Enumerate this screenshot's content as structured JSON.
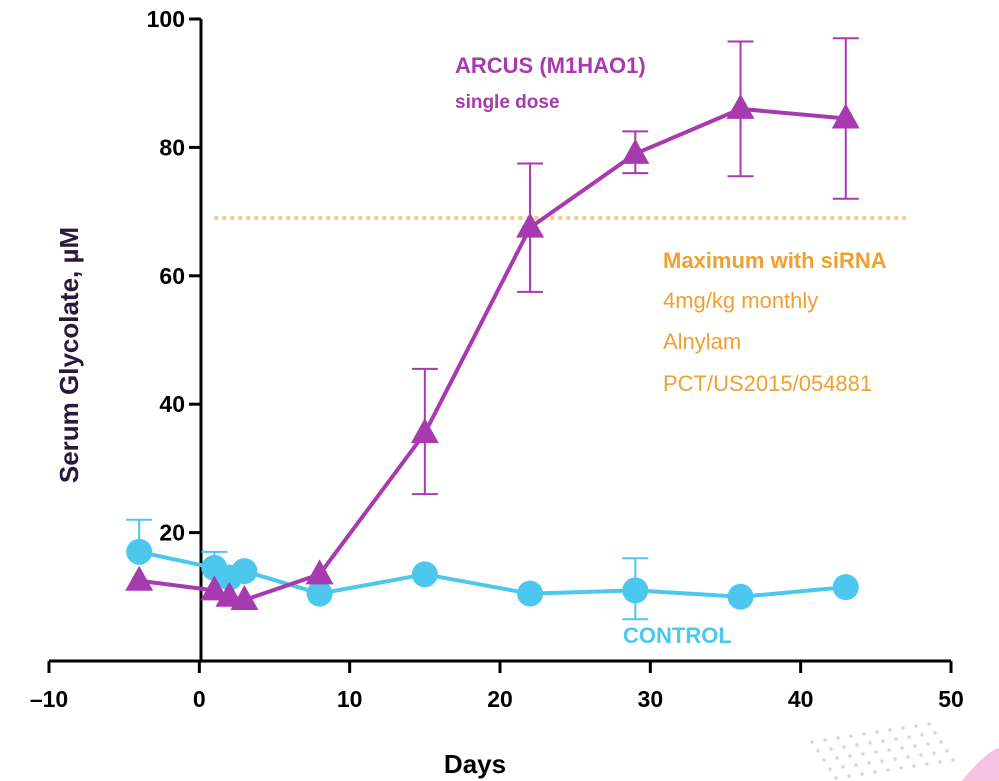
{
  "chart_data": {
    "type": "line",
    "xlabel": "Days",
    "ylabel": "Serum Glycolate, µM",
    "xlim": [
      -10,
      50
    ],
    "ylim": [
      0,
      100
    ],
    "xticks": [
      -10,
      0,
      10,
      20,
      30,
      40,
      50
    ],
    "xtick_labels": [
      "–10",
      "0",
      "10",
      "20",
      "30",
      "40",
      "50"
    ],
    "yticks": [
      20,
      40,
      60,
      80,
      100
    ],
    "ytick_labels": [
      "20",
      "40",
      "60",
      "80",
      "100"
    ],
    "grid": false,
    "colors": {
      "arcus": "#a83ab0",
      "control": "#4cc8ee",
      "sirna": "#f0a030",
      "axis": "#000000",
      "ylabel": "#2a1a3a"
    },
    "series": [
      {
        "name": "ARCUS (M1HAO1)",
        "marker": "triangle",
        "x": [
          -4,
          1,
          2,
          3,
          8,
          15,
          22,
          29,
          36,
          43
        ],
        "y": [
          12.5,
          11,
          10,
          9.5,
          13.5,
          35.5,
          67.5,
          79,
          86,
          84.5
        ],
        "err_low": [
          null,
          null,
          null,
          null,
          null,
          26,
          57.5,
          76,
          75.5,
          72
        ],
        "err_high": [
          null,
          null,
          null,
          null,
          null,
          45.5,
          77.5,
          82.5,
          96.5,
          97
        ]
      },
      {
        "name": "CONTROL",
        "marker": "circle",
        "x": [
          -4,
          1,
          2,
          3,
          8,
          15,
          22,
          29,
          36,
          43
        ],
        "y": [
          17,
          14.5,
          13,
          14,
          10.5,
          13.5,
          10.5,
          11,
          10,
          11.5
        ],
        "err_low": [
          null,
          null,
          null,
          null,
          null,
          null,
          null,
          6.5,
          null,
          null
        ],
        "err_high": [
          22,
          17,
          null,
          null,
          null,
          null,
          null,
          16,
          null,
          null
        ]
      }
    ],
    "reference_line": {
      "y": 69,
      "x_from": 0,
      "x_to": 47,
      "style": "dotted"
    },
    "annotations": {
      "arcus_title": "ARCUS (M1HAO1)",
      "arcus_sub": "single dose",
      "sirna_title": "Maximum with siRNA",
      "sirna_l1": "4mg/kg monthly",
      "sirna_l2": "Alnylam",
      "sirna_l3": "PCT/US2015/054881",
      "control_label": "CONTROL"
    }
  }
}
